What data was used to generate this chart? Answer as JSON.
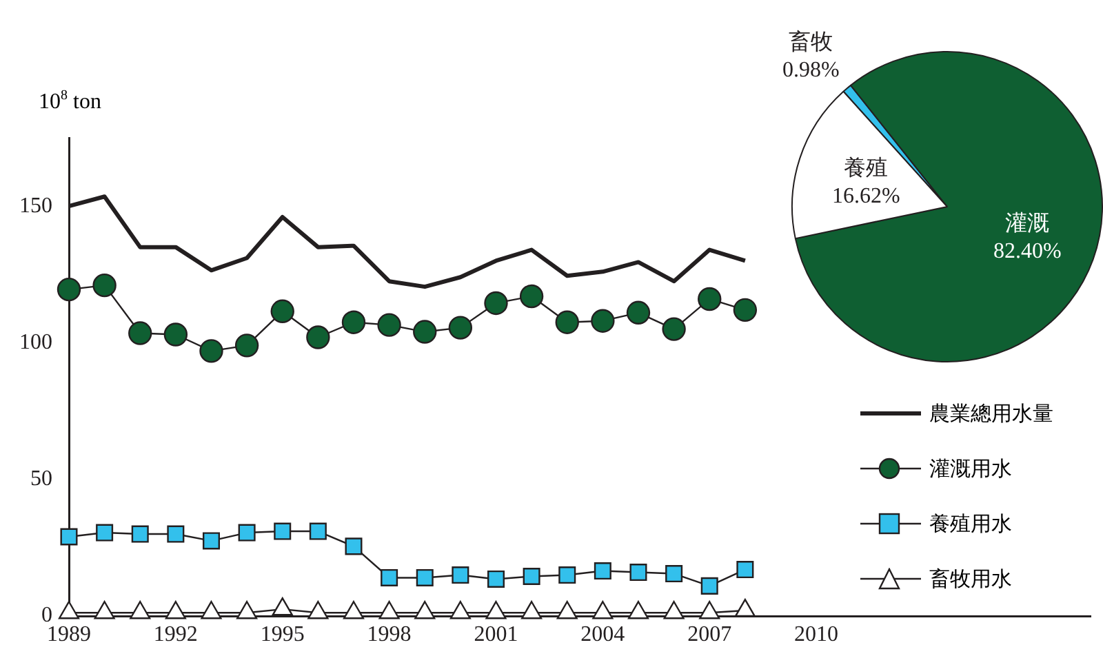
{
  "chart_data": [
    {
      "type": "line",
      "ylabel": "10$^{8}$ ton",
      "x": [
        1989,
        1990,
        1991,
        1992,
        1993,
        1994,
        1995,
        1996,
        1997,
        1998,
        1999,
        2000,
        2001,
        2002,
        2003,
        2004,
        2005,
        2006,
        2007,
        2008
      ],
      "series": [
        {
          "name": "農業總用水量",
          "color": "#231f20",
          "marker": "none",
          "values": [
            150,
            153.5,
            135,
            135,
            126.5,
            131,
            146,
            135,
            135.5,
            122.5,
            120.5,
            124,
            130,
            134,
            124.5,
            126,
            129.5,
            122.5,
            134,
            130
          ]
        },
        {
          "name": "灌溉用水",
          "color": "#0f5f32",
          "marker": "circle",
          "values": [
            119.5,
            121,
            103.5,
            103,
            97,
            99,
            111.5,
            102,
            107.5,
            106.5,
            104,
            105.5,
            114.5,
            117,
            107.5,
            108,
            111,
            105,
            116,
            112
          ]
        },
        {
          "name": "養殖用水",
          "color": "#33c0ec",
          "marker": "square",
          "values": [
            29,
            30.5,
            30,
            30,
            27.5,
            30.5,
            31,
            31,
            25.5,
            14,
            14,
            15,
            13.5,
            14.5,
            15,
            16.5,
            16,
            15.5,
            11,
            17
          ]
        },
        {
          "name": "畜牧用水",
          "color": "#ffffff",
          "marker": "triangle",
          "values": [
            1.2,
            1.2,
            1.2,
            1.2,
            1.2,
            1.2,
            2.5,
            1.2,
            1.2,
            1.2,
            1.2,
            1.2,
            1.2,
            1.2,
            1.2,
            1.2,
            1.2,
            1.2,
            1.2,
            2
          ]
        }
      ],
      "xlim": [
        1989,
        2017.7
      ],
      "xticks": [
        1989,
        1992,
        1995,
        1998,
        2001,
        2004,
        2007,
        2010
      ],
      "ylim": [
        0,
        175
      ],
      "yticks": [
        0,
        50,
        100,
        150
      ],
      "grid": false,
      "legend": "right"
    },
    {
      "type": "pie",
      "categories": [
        "畜牧",
        "灌溉",
        "養殖"
      ],
      "values": [
        0.98,
        82.4,
        16.62
      ],
      "colors": [
        "#33c0ec",
        "#0f5f32",
        "#ffffff"
      ],
      "value_labels": [
        "0.98%",
        "82.40%",
        "16.62%"
      ]
    }
  ]
}
